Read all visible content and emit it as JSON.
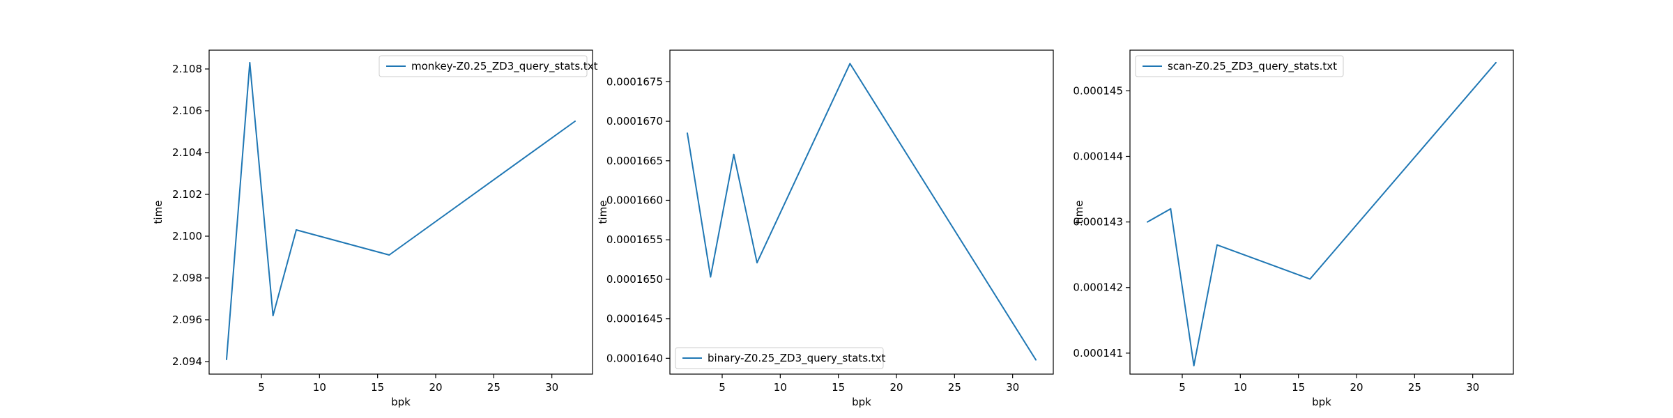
{
  "chart_data": [
    {
      "type": "line",
      "xlabel": "bpk",
      "ylabel": "time",
      "color": "#1f77b4",
      "legend_location": "upper right",
      "xlim": [
        0.5,
        33.5
      ],
      "ylim": [
        2.0934,
        2.1089
      ],
      "xticks": [
        5,
        10,
        15,
        20,
        25,
        30
      ],
      "xtick_labels": [
        "5",
        "10",
        "15",
        "20",
        "25",
        "30"
      ],
      "yticks": [
        2.094,
        2.096,
        2.098,
        2.1,
        2.102,
        2.104,
        2.106,
        2.108
      ],
      "ytick_labels": [
        "2.094",
        "2.096",
        "2.098",
        "2.100",
        "2.102",
        "2.104",
        "2.106",
        "2.108"
      ],
      "grid": false,
      "series": [
        {
          "name": "monkey-Z0.25_ZD3_query_stats.txt",
          "x": [
            2,
            4,
            6,
            8,
            16,
            32
          ],
          "y": [
            2.0941,
            2.1083,
            2.0962,
            2.1003,
            2.0991,
            2.1055
          ]
        }
      ]
    },
    {
      "type": "line",
      "xlabel": "bpk",
      "ylabel": "time",
      "color": "#1f77b4",
      "legend_location": "lower left",
      "xlim": [
        0.5,
        33.5
      ],
      "ylim": [
        0.0001638,
        0.0001679
      ],
      "xticks": [
        5,
        10,
        15,
        20,
        25,
        30
      ],
      "xtick_labels": [
        "5",
        "10",
        "15",
        "20",
        "25",
        "30"
      ],
      "yticks": [
        0.000164,
        0.0001645,
        0.000165,
        0.0001655,
        0.000166,
        0.0001665,
        0.000167,
        0.0001675
      ],
      "ytick_labels": [
        "0.0001640",
        "0.0001645",
        "0.0001650",
        "0.0001655",
        "0.0001660",
        "0.0001665",
        "0.0001670",
        "0.0001675"
      ],
      "grid": false,
      "series": [
        {
          "name": "binary-Z0.25_ZD3_query_stats.txt",
          "x": [
            2,
            4,
            6,
            8,
            16,
            32
          ],
          "y": [
            0.00016685,
            0.00016503,
            0.00016658,
            0.00016521,
            0.00016773,
            0.00016398
          ]
        }
      ]
    },
    {
      "type": "line",
      "xlabel": "bpk",
      "ylabel": "time",
      "color": "#1f77b4",
      "legend_location": "upper left",
      "xlim": [
        0.5,
        33.5
      ],
      "ylim": [
        0.00014068,
        0.00014562
      ],
      "xticks": [
        5,
        10,
        15,
        20,
        25,
        30
      ],
      "xtick_labels": [
        "5",
        "10",
        "15",
        "20",
        "25",
        "30"
      ],
      "yticks": [
        0.000141,
        0.000142,
        0.000143,
        0.000144,
        0.000145
      ],
      "ytick_labels": [
        "0.000141",
        "0.000142",
        "0.000143",
        "0.000144",
        "0.000145"
      ],
      "grid": false,
      "series": [
        {
          "name": "scan-Z0.25_ZD3_query_stats.txt",
          "x": [
            2,
            4,
            6,
            8,
            16,
            32
          ],
          "y": [
            0.000143,
            0.0001432,
            0.00014081,
            0.00014265,
            0.00014213,
            0.00014543
          ]
        }
      ]
    }
  ]
}
